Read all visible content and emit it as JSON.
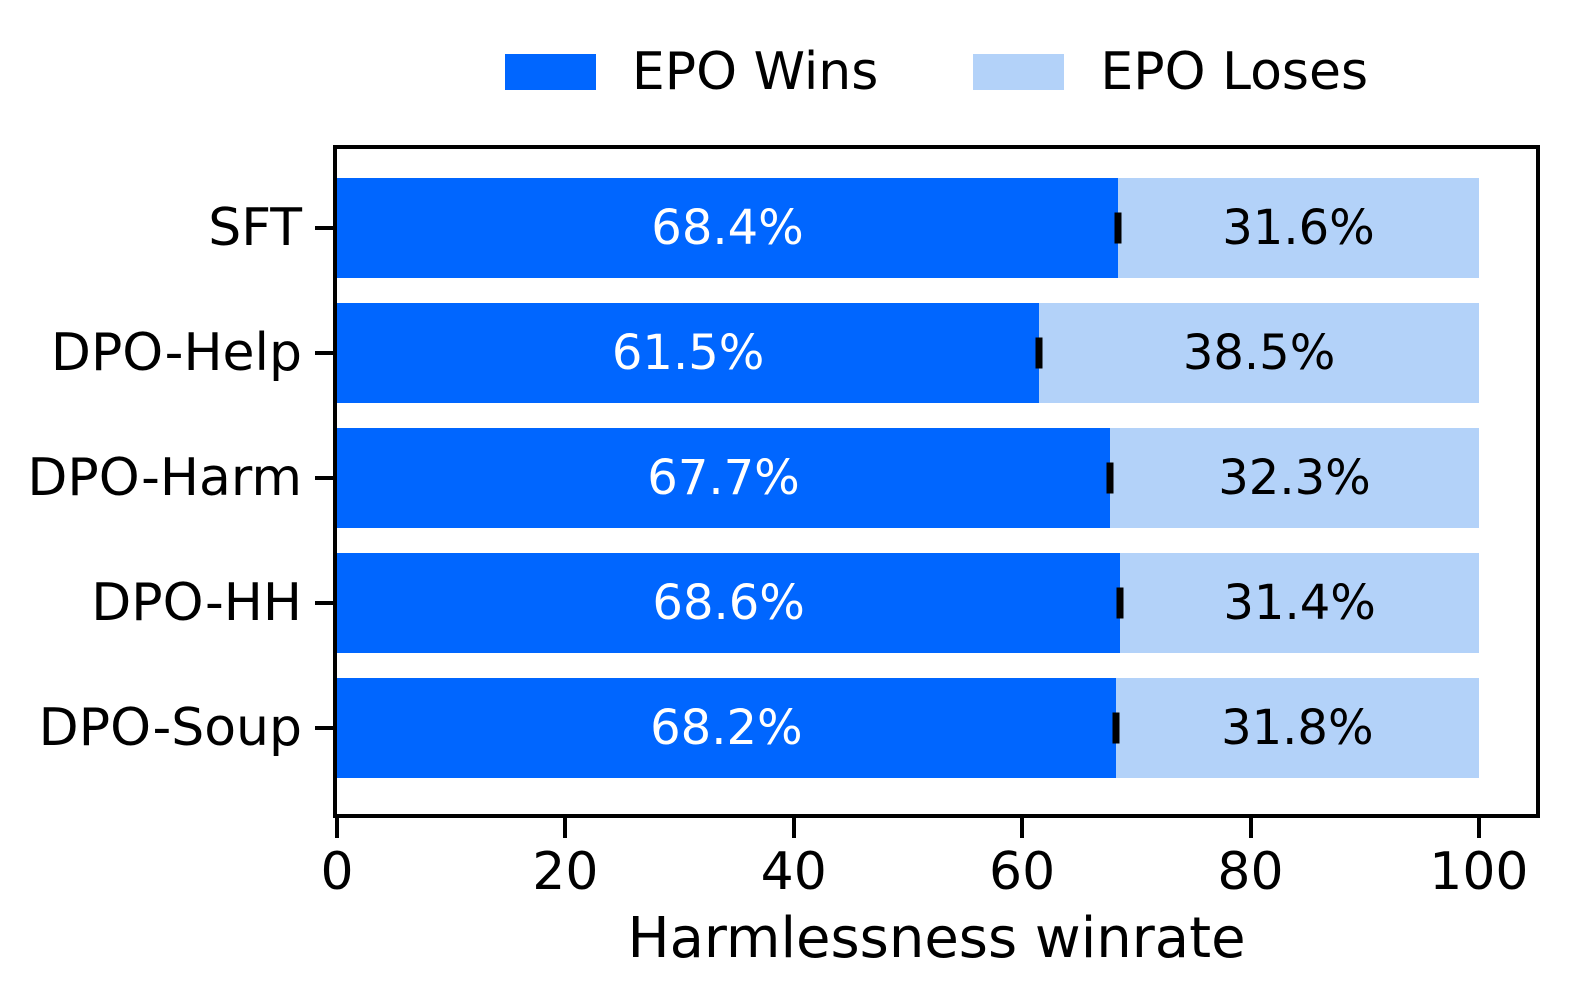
{
  "legend": {
    "items": [
      {
        "label": "EPO Wins",
        "color": "#0066ff"
      },
      {
        "label": "EPO Loses",
        "color": "#b3d2f9"
      }
    ]
  },
  "chart_data": {
    "type": "bar",
    "orientation": "horizontal",
    "stacked": true,
    "title": "",
    "xlabel": "Harmlessness winrate",
    "ylabel": "",
    "categories": [
      "SFT",
      "DPO-Help",
      "DPO-Harm",
      "DPO-HH",
      "DPO-Soup"
    ],
    "series": [
      {
        "name": "EPO Wins",
        "color": "#0066ff",
        "text_color": "#ffffff",
        "values": [
          68.4,
          61.5,
          67.7,
          68.6,
          68.2
        ]
      },
      {
        "name": "EPO Loses",
        "color": "#b3d2f9",
        "text_color": "#000000",
        "values": [
          31.6,
          38.5,
          32.3,
          31.4,
          31.8
        ]
      }
    ],
    "value_labels": [
      [
        "68.4%",
        "31.6%"
      ],
      [
        "61.5%",
        "38.5%"
      ],
      [
        "67.7%",
        "32.3%"
      ],
      [
        "68.6%",
        "31.4%"
      ],
      [
        "68.2%",
        "31.8%"
      ]
    ],
    "error_bars_at_boundary": true,
    "xlim": [
      0,
      105
    ],
    "x_ticks": [
      "0",
      "20",
      "40",
      "60",
      "80",
      "100"
    ],
    "x_tick_values": [
      0,
      20,
      40,
      60,
      80,
      100
    ],
    "grid": false,
    "legend_position": "top-center"
  }
}
